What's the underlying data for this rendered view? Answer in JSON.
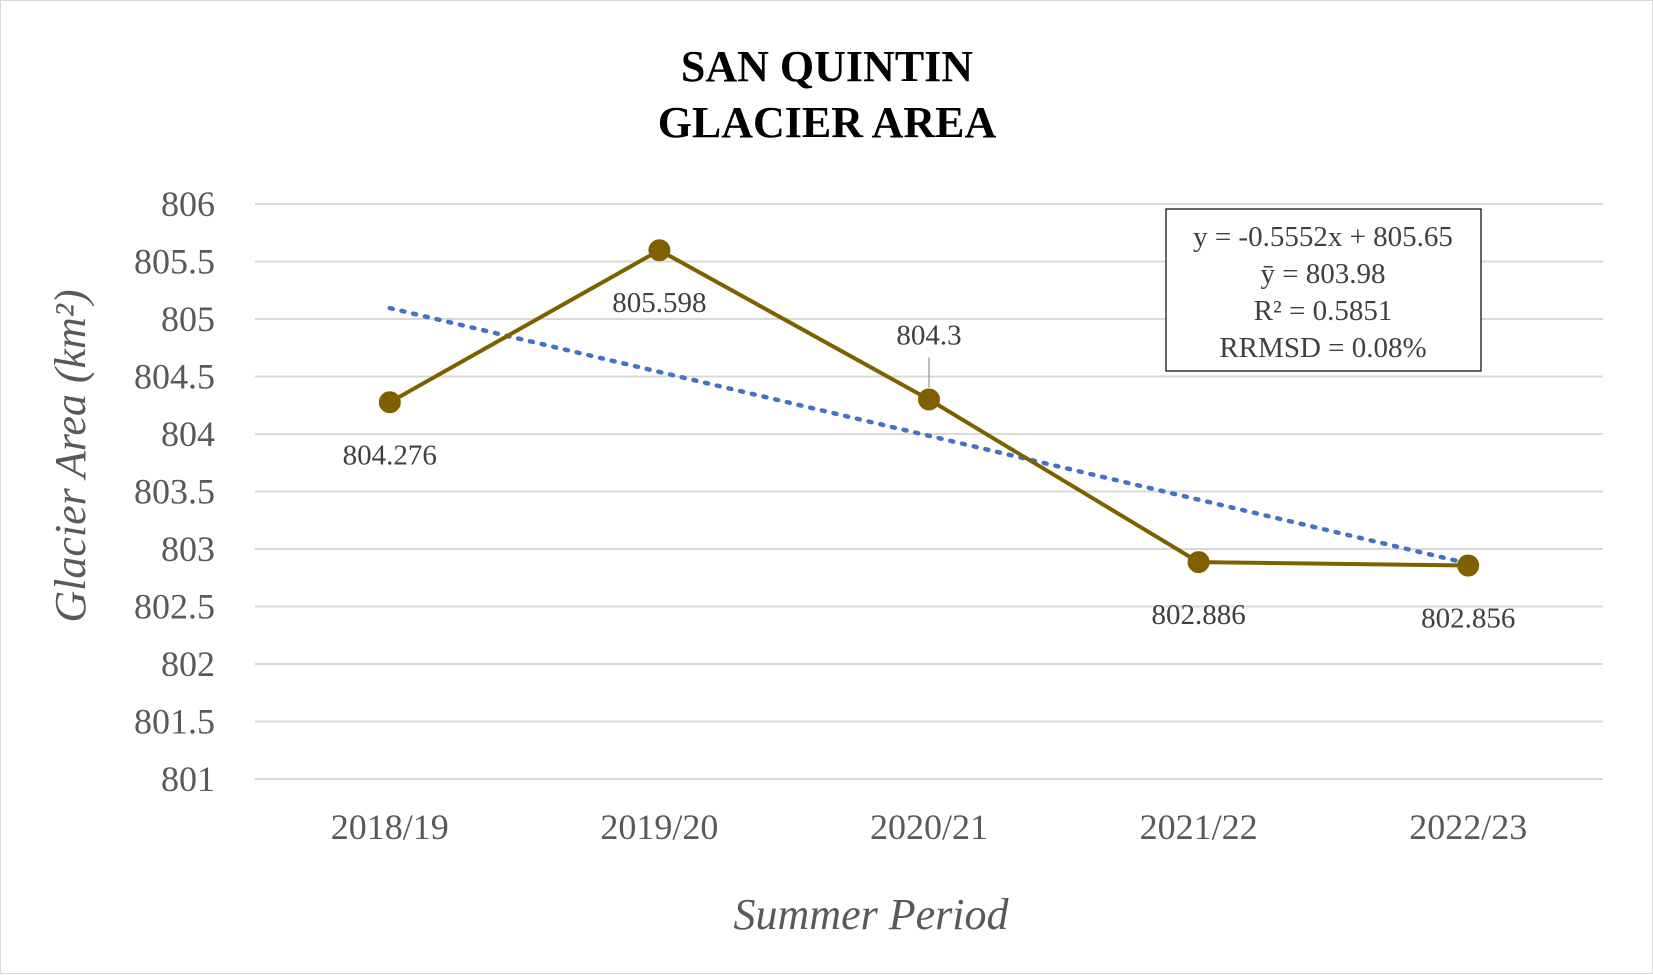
{
  "chart_data": {
    "type": "line",
    "title_lines": [
      "SAN QUINTIN",
      "GLACIER AREA"
    ],
    "xlabel": "Summer Period",
    "ylabel": "Glacier Area (km²)",
    "categories": [
      "2018/19",
      "2019/20",
      "2020/21",
      "2021/22",
      "2022/23"
    ],
    "series": [
      {
        "values": [
          804.276,
          805.598,
          804.3,
          802.886,
          802.856
        ],
        "labels": [
          "804.276",
          "805.598",
          "804.3",
          "802.886",
          "802.856"
        ],
        "color": "#7f6000",
        "marker": "circle"
      }
    ],
    "trendline": {
      "type": "linear",
      "slope": -0.5552,
      "intercept": 805.65,
      "color": "#4472c4",
      "style": "dotted"
    },
    "stats_box": [
      "y = -0.5552x + 805.65",
      "ȳ  = 803.98",
      "R² = 0.5851",
      "RRMSD = 0.08%"
    ],
    "ylim": [
      801,
      806
    ],
    "yticks": [
      "806",
      "805.5",
      "805",
      "804.5",
      "804",
      "803.5",
      "803",
      "802.5",
      "802",
      "801.5",
      "801"
    ],
    "grid": true,
    "legend": "none"
  }
}
